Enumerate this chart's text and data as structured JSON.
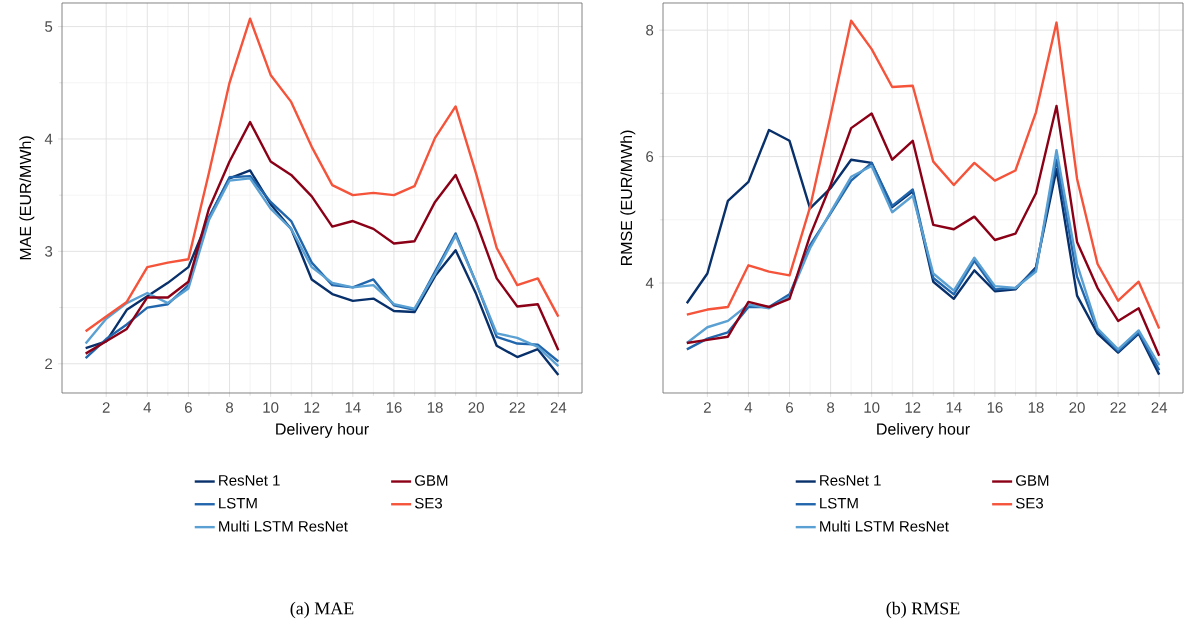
{
  "chart_data": [
    {
      "type": "line",
      "xlabel": "Delivery hour",
      "ylabel": "MAE (EUR/MWh)",
      "x": [
        1,
        2,
        3,
        4,
        5,
        6,
        7,
        8,
        9,
        10,
        11,
        12,
        13,
        14,
        15,
        16,
        17,
        18,
        19,
        20,
        21,
        22,
        23,
        24
      ],
      "xlim": [
        -0.15,
        25.15
      ],
      "xticks": [
        2,
        4,
        6,
        8,
        10,
        12,
        14,
        16,
        18,
        20,
        22,
        24
      ],
      "ylim": [
        1.74,
        5.21
      ],
      "yticks": [
        2,
        3,
        4,
        5
      ],
      "grid": true,
      "legend": "bottom",
      "series": [
        {
          "name": "ResNet 1",
          "color": "#08306b",
          "values": [
            2.14,
            2.2,
            2.48,
            2.6,
            2.72,
            2.86,
            3.3,
            3.65,
            3.72,
            3.42,
            3.2,
            2.75,
            2.62,
            2.56,
            2.58,
            2.47,
            2.46,
            2.78,
            3.01,
            2.62,
            2.16,
            2.06,
            2.13,
            1.9
          ]
        },
        {
          "name": "LSTM",
          "color": "#2166ac",
          "values": [
            2.05,
            2.22,
            2.35,
            2.5,
            2.53,
            2.7,
            3.3,
            3.66,
            3.67,
            3.44,
            3.27,
            2.9,
            2.7,
            2.68,
            2.75,
            2.52,
            2.48,
            2.82,
            3.16,
            2.72,
            2.24,
            2.18,
            2.17,
            2.02
          ]
        },
        {
          "name": "Multi LSTM ResNet",
          "color": "#5aa0d2",
          "values": [
            2.18,
            2.4,
            2.54,
            2.63,
            2.54,
            2.67,
            3.28,
            3.63,
            3.65,
            3.38,
            3.2,
            2.86,
            2.72,
            2.68,
            2.7,
            2.53,
            2.49,
            2.8,
            3.14,
            2.72,
            2.27,
            2.23,
            2.15,
            1.98
          ]
        },
        {
          "name": "GBM",
          "color": "#8b0016",
          "values": [
            2.09,
            2.2,
            2.31,
            2.59,
            2.59,
            2.73,
            3.38,
            3.8,
            4.15,
            3.8,
            3.68,
            3.49,
            3.22,
            3.27,
            3.2,
            3.07,
            3.09,
            3.44,
            3.68,
            3.26,
            2.76,
            2.51,
            2.53,
            2.12
          ]
        },
        {
          "name": "SE3",
          "color": "#f5533a",
          "values": [
            2.29,
            2.42,
            2.55,
            2.86,
            2.9,
            2.93,
            3.7,
            4.5,
            5.07,
            4.57,
            4.33,
            3.93,
            3.59,
            3.5,
            3.52,
            3.5,
            3.58,
            4.01,
            4.29,
            3.69,
            3.03,
            2.7,
            2.76,
            2.42
          ]
        }
      ],
      "annotations": [
        "(a) MAE"
      ]
    },
    {
      "type": "line",
      "xlabel": "Delivery hour",
      "ylabel": "RMSE (EUR/MWh)",
      "x": [
        1,
        2,
        3,
        4,
        5,
        6,
        7,
        8,
        9,
        10,
        11,
        12,
        13,
        14,
        15,
        16,
        17,
        18,
        19,
        20,
        21,
        22,
        23,
        24
      ],
      "xlim": [
        -0.16,
        25.16
      ],
      "xticks": [
        2,
        4,
        6,
        8,
        10,
        12,
        14,
        16,
        18,
        20,
        22,
        24
      ],
      "ylim": [
        2.26,
        8.43
      ],
      "yticks": [
        4,
        6,
        8
      ],
      "grid": true,
      "legend": "bottom",
      "series": [
        {
          "name": "ResNet 1",
          "color": "#08306b",
          "values": [
            3.68,
            4.15,
            5.3,
            5.6,
            6.42,
            6.25,
            5.18,
            5.5,
            5.95,
            5.9,
            5.2,
            5.45,
            4.02,
            3.75,
            4.2,
            3.87,
            3.9,
            4.25,
            5.8,
            3.8,
            3.2,
            2.9,
            3.2,
            2.55
          ]
        },
        {
          "name": "LSTM",
          "color": "#2166ac",
          "values": [
            2.95,
            3.12,
            3.22,
            3.62,
            3.62,
            3.82,
            4.6,
            5.1,
            5.62,
            5.9,
            5.22,
            5.48,
            4.08,
            3.82,
            4.35,
            3.9,
            3.92,
            4.22,
            5.95,
            4.1,
            3.25,
            2.92,
            3.22,
            2.62
          ]
        },
        {
          "name": "Multi LSTM ResNet",
          "color": "#5aa0d2",
          "values": [
            3.05,
            3.3,
            3.4,
            3.66,
            3.6,
            3.78,
            4.55,
            5.12,
            5.68,
            5.85,
            5.12,
            5.38,
            4.15,
            3.88,
            4.4,
            3.95,
            3.92,
            4.18,
            6.1,
            4.3,
            3.28,
            2.95,
            3.25,
            2.7
          ]
        },
        {
          "name": "GBM",
          "color": "#8b0016",
          "values": [
            3.05,
            3.1,
            3.15,
            3.7,
            3.62,
            3.75,
            4.75,
            5.55,
            6.45,
            6.68,
            5.95,
            6.25,
            4.92,
            4.85,
            5.05,
            4.68,
            4.78,
            5.42,
            6.8,
            4.65,
            3.92,
            3.4,
            3.6,
            2.85
          ]
        },
        {
          "name": "SE3",
          "color": "#f5533a",
          "values": [
            3.5,
            3.58,
            3.62,
            4.28,
            4.18,
            4.12,
            5.2,
            6.65,
            8.15,
            7.7,
            7.1,
            7.12,
            5.92,
            5.55,
            5.9,
            5.62,
            5.78,
            6.7,
            8.12,
            5.65,
            4.3,
            3.72,
            4.02,
            3.28
          ]
        }
      ],
      "annotations": [
        "(b) RMSE"
      ]
    }
  ]
}
